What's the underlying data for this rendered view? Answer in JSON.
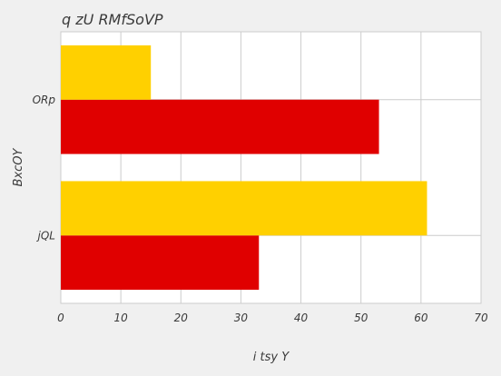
{
  "chart_data": {
    "type": "bar",
    "orientation": "horizontal",
    "title": "q zU  RMfSoVP",
    "xlabel": "i  tsy Y",
    "ylabel": "BxcOY",
    "categories": [
      "jQL",
      "ORp"
    ],
    "series": [
      {
        "color": "#e00000",
        "values": [
          33,
          53
        ]
      },
      {
        "color": "#ffd000",
        "values": [
          61,
          15
        ]
      }
    ],
    "xlim": [
      0,
      70
    ],
    "xticks": [
      0,
      10,
      20,
      30,
      40,
      50,
      60,
      70
    ],
    "grid": true
  }
}
